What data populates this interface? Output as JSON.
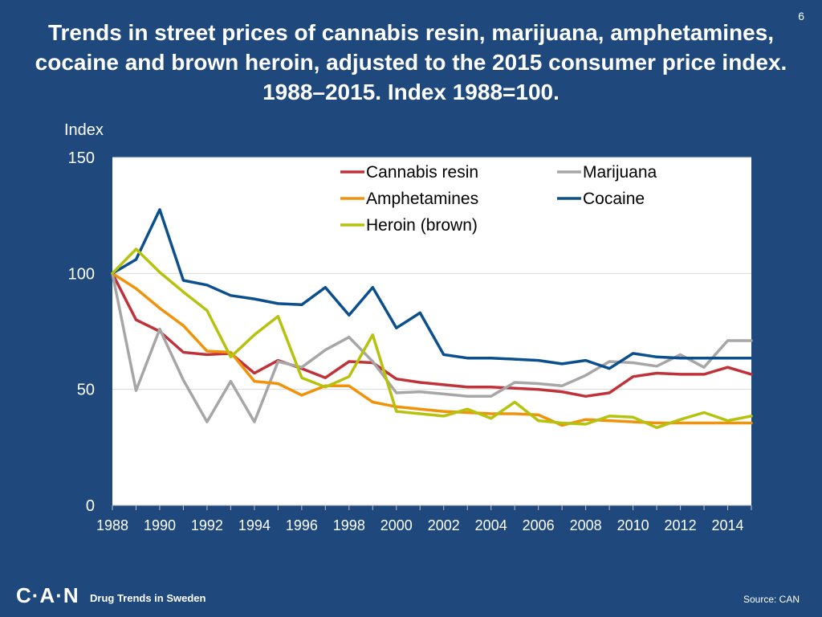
{
  "slide": {
    "number": "6"
  },
  "footer": {
    "logo": "C·A·N",
    "tagline": "Drug Trends in Sweden",
    "source": "Source: CAN"
  },
  "colors": {
    "background": "#1F497D",
    "plot_bg": "#FFFFFF"
  },
  "chart_data": {
    "type": "line",
    "title": "Trends in street prices of cannabis resin, marijuana, amphetamines, cocaine and brown heroin, adjusted to the 2015 consumer price index. 1988–2015. Index 1988=100.",
    "ylabel": "Index",
    "xlabel": "",
    "ylim": [
      0,
      150
    ],
    "yticks": [
      0,
      50,
      100,
      150
    ],
    "xticks": [
      1988,
      1990,
      1992,
      1994,
      1996,
      1998,
      2000,
      2002,
      2004,
      2006,
      2008,
      2010,
      2012,
      2014
    ],
    "x": [
      1988,
      1989,
      1990,
      1991,
      1992,
      1993,
      1994,
      1995,
      1996,
      1997,
      1998,
      1999,
      2000,
      2001,
      2002,
      2003,
      2004,
      2005,
      2006,
      2007,
      2008,
      2009,
      2010,
      2011,
      2012,
      2013,
      2014,
      2015
    ],
    "grid": true,
    "legend_position": "top-right",
    "series": [
      {
        "name": "Cannabis resin",
        "color": "#C0323A",
        "values": [
          100,
          80,
          75,
          66,
          65,
          65.5,
          57,
          62.5,
          59,
          55,
          62,
          61.5,
          54.5,
          53,
          52,
          51,
          51,
          50.5,
          50,
          49,
          47,
          48.5,
          55.5,
          57,
          56.5,
          56.5,
          59.5,
          56.5
        ]
      },
      {
        "name": "Marijuana",
        "color": "#A6A6A6",
        "values": [
          100,
          49.5,
          76,
          54,
          36,
          53.5,
          36,
          62,
          59.5,
          67,
          72.5,
          62,
          48.5,
          49,
          48,
          47,
          47,
          53,
          52.5,
          51.5,
          56,
          62,
          61.5,
          60,
          65,
          59.5,
          71,
          71
        ]
      },
      {
        "name": "Amphetamines",
        "color": "#F0930A",
        "values": [
          100,
          93.5,
          85,
          77.5,
          66.5,
          66,
          53.5,
          52.5,
          47.5,
          51.5,
          51.5,
          44.5,
          42.5,
          41.5,
          40.5,
          40,
          39.5,
          39.5,
          39,
          34.5,
          37,
          36.5,
          36,
          35.5,
          35.5,
          35.5,
          35.5,
          35.5
        ]
      },
      {
        "name": "Cocaine",
        "color": "#0B4F8C",
        "values": [
          100,
          106,
          127.5,
          97,
          95,
          90.5,
          89,
          87,
          86.5,
          94,
          82,
          94,
          76.5,
          83,
          65,
          63.5,
          63.5,
          63,
          62.5,
          61,
          62.5,
          59,
          65.5,
          64,
          63.5,
          63.5,
          63.5,
          63.5
        ]
      },
      {
        "name": "Heroin (brown)",
        "color": "#B5C20E",
        "values": [
          100,
          110.5,
          100.5,
          92,
          84,
          64,
          73.5,
          81.5,
          55,
          51,
          55.5,
          73.5,
          40.5,
          39.5,
          38.5,
          41.5,
          37.5,
          44.5,
          36.5,
          35.5,
          35,
          38.5,
          38,
          33.5,
          37,
          40,
          36.5,
          38.5
        ]
      }
    ]
  }
}
